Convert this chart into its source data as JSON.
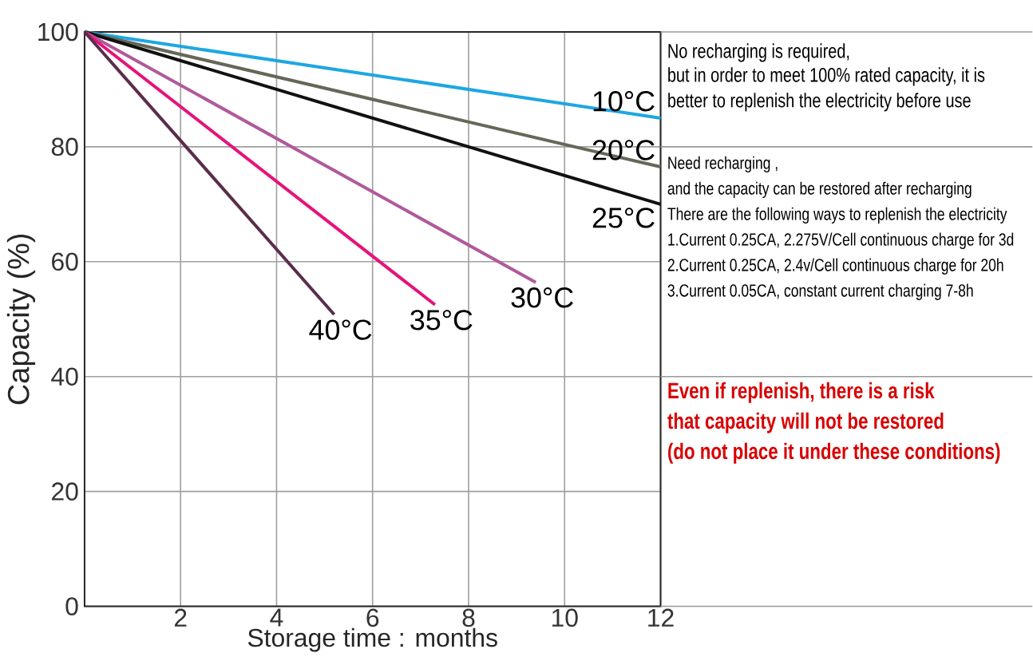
{
  "chart_data": {
    "type": "line",
    "xlabel": "Storage time : months",
    "ylabel": "Capacity (%)",
    "xlim": [
      0,
      12
    ],
    "ylim": [
      0,
      100
    ],
    "xticks": [
      2,
      4,
      6,
      8,
      10,
      12
    ],
    "yticks": [
      0,
      20,
      40,
      60,
      80,
      100
    ],
    "grid": true,
    "legend": false,
    "marker": "none",
    "line_style": "solid",
    "series": [
      {
        "name": "10°C",
        "color": "#1ea7e1",
        "x": [
          0,
          12
        ],
        "values": [
          100,
          85
        ]
      },
      {
        "name": "20°C",
        "color": "#666659",
        "x": [
          0,
          12
        ],
        "values": [
          100,
          76.5
        ]
      },
      {
        "name": "25°C",
        "color": "#111111",
        "x": [
          0,
          12
        ],
        "values": [
          100,
          70
        ]
      },
      {
        "name": "30°C",
        "color": "#b05a9a",
        "x": [
          0,
          9.4
        ],
        "values": [
          100,
          56.4
        ]
      },
      {
        "name": "35°C",
        "color": "#e5137a",
        "x": [
          0,
          7.3
        ],
        "values": [
          100,
          52.5
        ]
      },
      {
        "name": "40°C",
        "color": "#5a2d4a",
        "x": [
          0,
          5.2
        ],
        "values": [
          100,
          50.8
        ]
      }
    ],
    "annotations": [
      "No recharging is required,",
      "but in order to meet 100% rated capacity, it is",
      "better to replenish the electricity before use",
      "Need recharging ,",
      "and the capacity can be restored after recharging",
      "There are the following ways to replenish the electricity",
      "1.Current 0.25CA, 2.275V/Cell continuous charge for 3d",
      "2.Current 0.25CA, 2.4v/Cell continuous charge for 20h",
      "3.Current 0.05CA, constant current charging 7-8h",
      "Even if replenish, there is a risk",
      "that capacity will not be restored",
      "(do not place it under these conditions)"
    ]
  }
}
